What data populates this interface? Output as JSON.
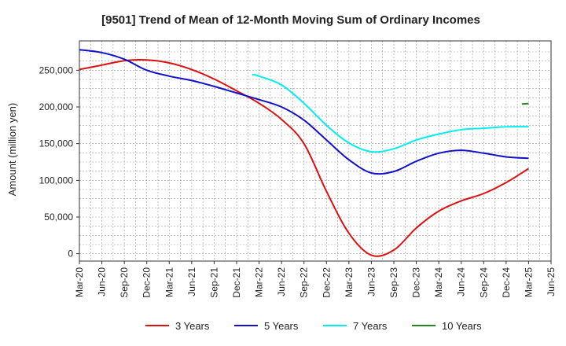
{
  "chart_data": {
    "type": "line",
    "title": "[9501]  Trend of Mean of 12-Month Moving Sum of Ordinary Incomes",
    "xlabel": "",
    "ylabel": "Amount (million yen)",
    "ylim": [
      -10000,
      290000
    ],
    "yticks": [
      0,
      50000,
      100000,
      150000,
      200000,
      250000
    ],
    "ytick_labels": [
      "0",
      "50,000",
      "100,000",
      "150,000",
      "200,000",
      "250,000"
    ],
    "xticks": [
      "Mar-20",
      "Jun-20",
      "Sep-20",
      "Dec-20",
      "Mar-21",
      "Jun-21",
      "Sep-21",
      "Dec-21",
      "Mar-22",
      "Jun-22",
      "Sep-22",
      "Dec-22",
      "Mar-23",
      "Jun-23",
      "Sep-23",
      "Dec-23",
      "Mar-24",
      "Jun-24",
      "Sep-24",
      "Dec-24",
      "Mar-25",
      "Jun-25"
    ],
    "grid": true,
    "legend_position": "bottom",
    "series": [
      {
        "name": "3 Years",
        "color": "#dd1111",
        "points": [
          [
            0,
            251000
          ],
          [
            1,
            257000
          ],
          [
            2,
            263000
          ],
          [
            3,
            264000
          ],
          [
            4,
            260000
          ],
          [
            5,
            251000
          ],
          [
            6,
            238000
          ],
          [
            7,
            222000
          ],
          [
            8,
            205000
          ],
          [
            9,
            183000
          ],
          [
            10,
            150000
          ],
          [
            11,
            85000
          ],
          [
            12,
            28000
          ],
          [
            13,
            -2000
          ],
          [
            14,
            5000
          ],
          [
            15,
            35000
          ],
          [
            16,
            58000
          ],
          [
            17,
            72000
          ],
          [
            18,
            82000
          ],
          [
            19,
            97000
          ],
          [
            20,
            116000
          ]
        ]
      },
      {
        "name": "5 Years",
        "color": "#1111cc",
        "points": [
          [
            0,
            278000
          ],
          [
            1,
            274000
          ],
          [
            2,
            265000
          ],
          [
            3,
            250000
          ],
          [
            4,
            242000
          ],
          [
            5,
            236000
          ],
          [
            6,
            228000
          ],
          [
            7,
            219000
          ],
          [
            8,
            210000
          ],
          [
            9,
            200000
          ],
          [
            10,
            182000
          ],
          [
            11,
            155000
          ],
          [
            12,
            128000
          ],
          [
            13,
            110000
          ],
          [
            14,
            112000
          ],
          [
            15,
            126000
          ],
          [
            16,
            137000
          ],
          [
            17,
            141000
          ],
          [
            18,
            137000
          ],
          [
            19,
            132000
          ],
          [
            20,
            130000
          ]
        ]
      },
      {
        "name": "7 Years",
        "color": "#00eeee",
        "points": [
          [
            7.7,
            244000
          ],
          [
            8,
            242000
          ],
          [
            9,
            230000
          ],
          [
            10,
            205000
          ],
          [
            11,
            175000
          ],
          [
            12,
            151000
          ],
          [
            13,
            139000
          ],
          [
            14,
            143000
          ],
          [
            15,
            155000
          ],
          [
            16,
            163000
          ],
          [
            17,
            169000
          ],
          [
            18,
            171000
          ],
          [
            19,
            173000
          ],
          [
            20,
            173000
          ]
        ]
      },
      {
        "name": "10 Years",
        "color": "#228822",
        "points": [
          [
            19.7,
            204000
          ],
          [
            20,
            204500
          ]
        ]
      }
    ]
  }
}
